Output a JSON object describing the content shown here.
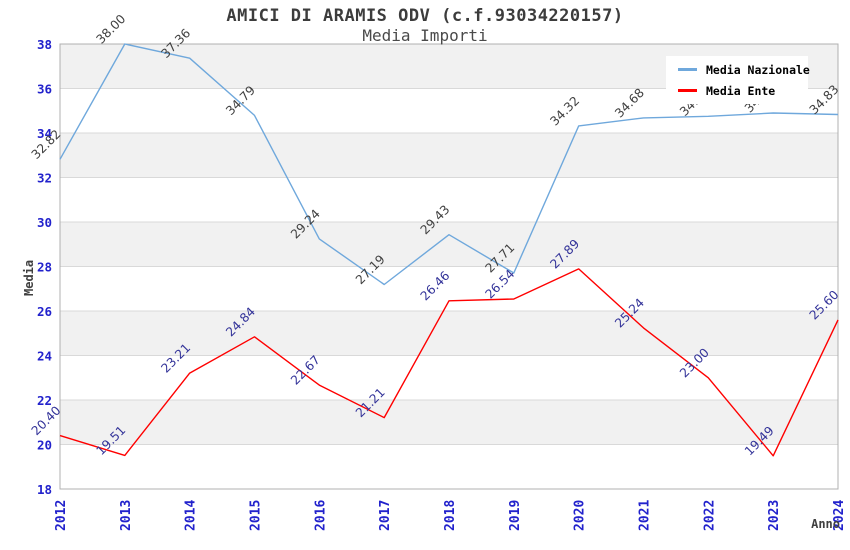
{
  "header": {
    "title": "AMICI DI ARAMIS ODV (c.f.93034220157)",
    "subtitle": "Media Importi"
  },
  "legend": {
    "items": [
      {
        "label": "Media Nazionale",
        "color": "#6FA8DC"
      },
      {
        "label": "Media Ente",
        "color": "#FF0000"
      }
    ]
  },
  "chart_data": {
    "type": "line",
    "title": "AMICI DI ARAMIS ODV (c.f.93034220157)",
    "subtitle": "Media Importi",
    "xlabel": "Anno",
    "ylabel": "Media",
    "x": [
      2012,
      2013,
      2014,
      2015,
      2016,
      2017,
      2018,
      2019,
      2020,
      2021,
      2022,
      2023,
      2024
    ],
    "series": [
      {
        "name": "Media Nazionale",
        "color": "#6FA8DC",
        "label_color": "#404040",
        "values": [
          32.82,
          38.0,
          37.36,
          34.79,
          29.24,
          27.19,
          29.43,
          27.71,
          34.32,
          34.68,
          34.75,
          34.9,
          34.83
        ]
      },
      {
        "name": "Media Ente",
        "color": "#FF0000",
        "label_color": "#333399",
        "values": [
          20.4,
          19.51,
          23.21,
          24.84,
          22.67,
          21.21,
          26.46,
          26.54,
          27.89,
          25.24,
          23.0,
          19.49,
          25.6
        ]
      }
    ],
    "ylim": [
      18,
      38
    ],
    "ytick_step": 2,
    "grid": true,
    "band_color": "#F1F1F1",
    "grid_color": "#D9D9D9",
    "frame_color": "#B0B0B0",
    "tick_label_color": "#2222CC",
    "axis_title_color": "#404040",
    "legend_position": "top-right"
  }
}
